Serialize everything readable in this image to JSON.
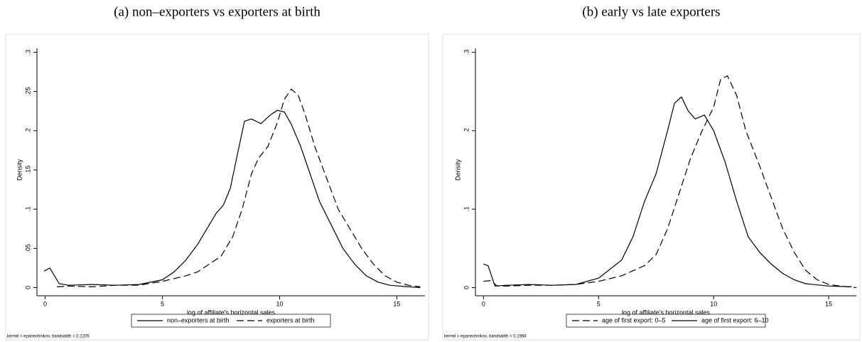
{
  "chart_data": [
    {
      "type": "line",
      "title": "(a) non–exporters vs exporters at birth",
      "xlabel": "log of affiliate's horizontal sales",
      "ylabel": "Density",
      "note": "kernel = epanechnikov, bandwidth = 0.2205",
      "xlim": [
        -0.35,
        16.2
      ],
      "ylim": [
        -0.005,
        0.305
      ],
      "xticks": [
        0,
        5,
        10,
        15
      ],
      "yticks": [
        0,
        {
          "value": 0.05,
          "label": ".05"
        },
        {
          "value": 0.1,
          "label": ".1"
        },
        {
          "value": 0.15,
          "label": ".15"
        },
        {
          "value": 0.2,
          "label": ".2"
        },
        {
          "value": 0.25,
          "label": ".25"
        },
        {
          "value": 0.3,
          "label": ".3"
        }
      ],
      "series": [
        {
          "name": "non–exporters at birth",
          "color": "#000000",
          "dash": false,
          "x": [
            -0.05,
            0.2,
            0.6,
            1,
            2,
            3,
            4,
            5,
            5.5,
            6,
            6.5,
            7,
            7.3,
            7.6,
            7.9,
            8.2,
            8.5,
            8.8,
            9.2,
            9.6,
            9.9,
            10.2,
            10.5,
            10.9,
            11.3,
            11.7,
            12.2,
            12.7,
            13.2,
            13.7,
            14.2,
            14.7,
            15.5,
            16
          ],
          "values": [
            0.021,
            0.025,
            0.005,
            0.003,
            0.004,
            0.003,
            0.004,
            0.01,
            0.02,
            0.035,
            0.055,
            0.08,
            0.095,
            0.105,
            0.127,
            0.17,
            0.212,
            0.215,
            0.209,
            0.22,
            0.226,
            0.224,
            0.208,
            0.18,
            0.145,
            0.11,
            0.08,
            0.05,
            0.03,
            0.015,
            0.007,
            0.003,
            0.001,
            0
          ]
        },
        {
          "name": "exporters at birth",
          "color": "#000000",
          "dash": true,
          "x": [
            0.5,
            1,
            2,
            3,
            4,
            5,
            6,
            6.5,
            7,
            7.5,
            8,
            8.4,
            8.8,
            9.1,
            9.5,
            9.9,
            10.2,
            10.5,
            10.8,
            11.1,
            11.5,
            12,
            12.5,
            13,
            13.5,
            14,
            14.5,
            15,
            15.5,
            16
          ],
          "values": [
            0.001,
            0.002,
            0.001,
            0.003,
            0.003,
            0.008,
            0.015,
            0.02,
            0.03,
            0.04,
            0.065,
            0.1,
            0.145,
            0.165,
            0.18,
            0.21,
            0.24,
            0.253,
            0.245,
            0.22,
            0.18,
            0.14,
            0.1,
            0.075,
            0.05,
            0.03,
            0.015,
            0.007,
            0.003,
            0.001
          ]
        }
      ]
    },
    {
      "type": "line",
      "title": "(b) early vs late exporters",
      "xlabel": "log of affiliate's horizontal sales",
      "ylabel": "Density",
      "note": "kernel = epanechnikov, bandwidth = 0.1968",
      "xlim": [
        -0.35,
        16.2
      ],
      "ylim": [
        -0.005,
        0.305
      ],
      "xticks": [
        0,
        5,
        10,
        15
      ],
      "yticks": [
        0,
        {
          "value": 0.1,
          "label": ".1"
        },
        {
          "value": 0.2,
          "label": ".2"
        },
        {
          "value": 0.3,
          "label": ".3"
        }
      ],
      "series": [
        {
          "name": "age of first export: 0–5",
          "color": "#000000",
          "dash": true,
          "x": [
            0,
            0.3,
            0.6,
            1,
            2,
            3,
            4,
            5,
            6,
            7,
            7.5,
            8,
            8.5,
            9,
            9.5,
            10,
            10.3,
            10.6,
            11,
            11.4,
            12,
            12.5,
            13,
            13.5,
            14,
            14.5,
            15,
            15.5,
            16.2
          ],
          "values": [
            0.008,
            0.009,
            0.002,
            0.002,
            0.003,
            0.003,
            0.004,
            0.008,
            0.015,
            0.028,
            0.042,
            0.075,
            0.12,
            0.165,
            0.2,
            0.23,
            0.265,
            0.27,
            0.245,
            0.2,
            0.155,
            0.115,
            0.075,
            0.045,
            0.022,
            0.01,
            0.004,
            0.002,
            0
          ]
        },
        {
          "name": "age of first export: 6–10",
          "color": "#000000",
          "dash": false,
          "x": [
            0,
            0.2,
            0.5,
            1,
            2,
            3,
            4,
            5,
            6,
            6.5,
            7,
            7.5,
            8,
            8.3,
            8.6,
            8.9,
            9.2,
            9.6,
            10,
            10.5,
            11,
            11.5,
            12,
            12.5,
            13,
            13.5,
            14,
            15,
            16
          ],
          "values": [
            0.03,
            0.028,
            0.002,
            0.003,
            0.004,
            0.003,
            0.004,
            0.012,
            0.035,
            0.065,
            0.11,
            0.145,
            0.2,
            0.235,
            0.243,
            0.225,
            0.215,
            0.22,
            0.2,
            0.16,
            0.11,
            0.065,
            0.045,
            0.03,
            0.018,
            0.01,
            0.005,
            0.002,
            0.001
          ]
        }
      ]
    }
  ]
}
